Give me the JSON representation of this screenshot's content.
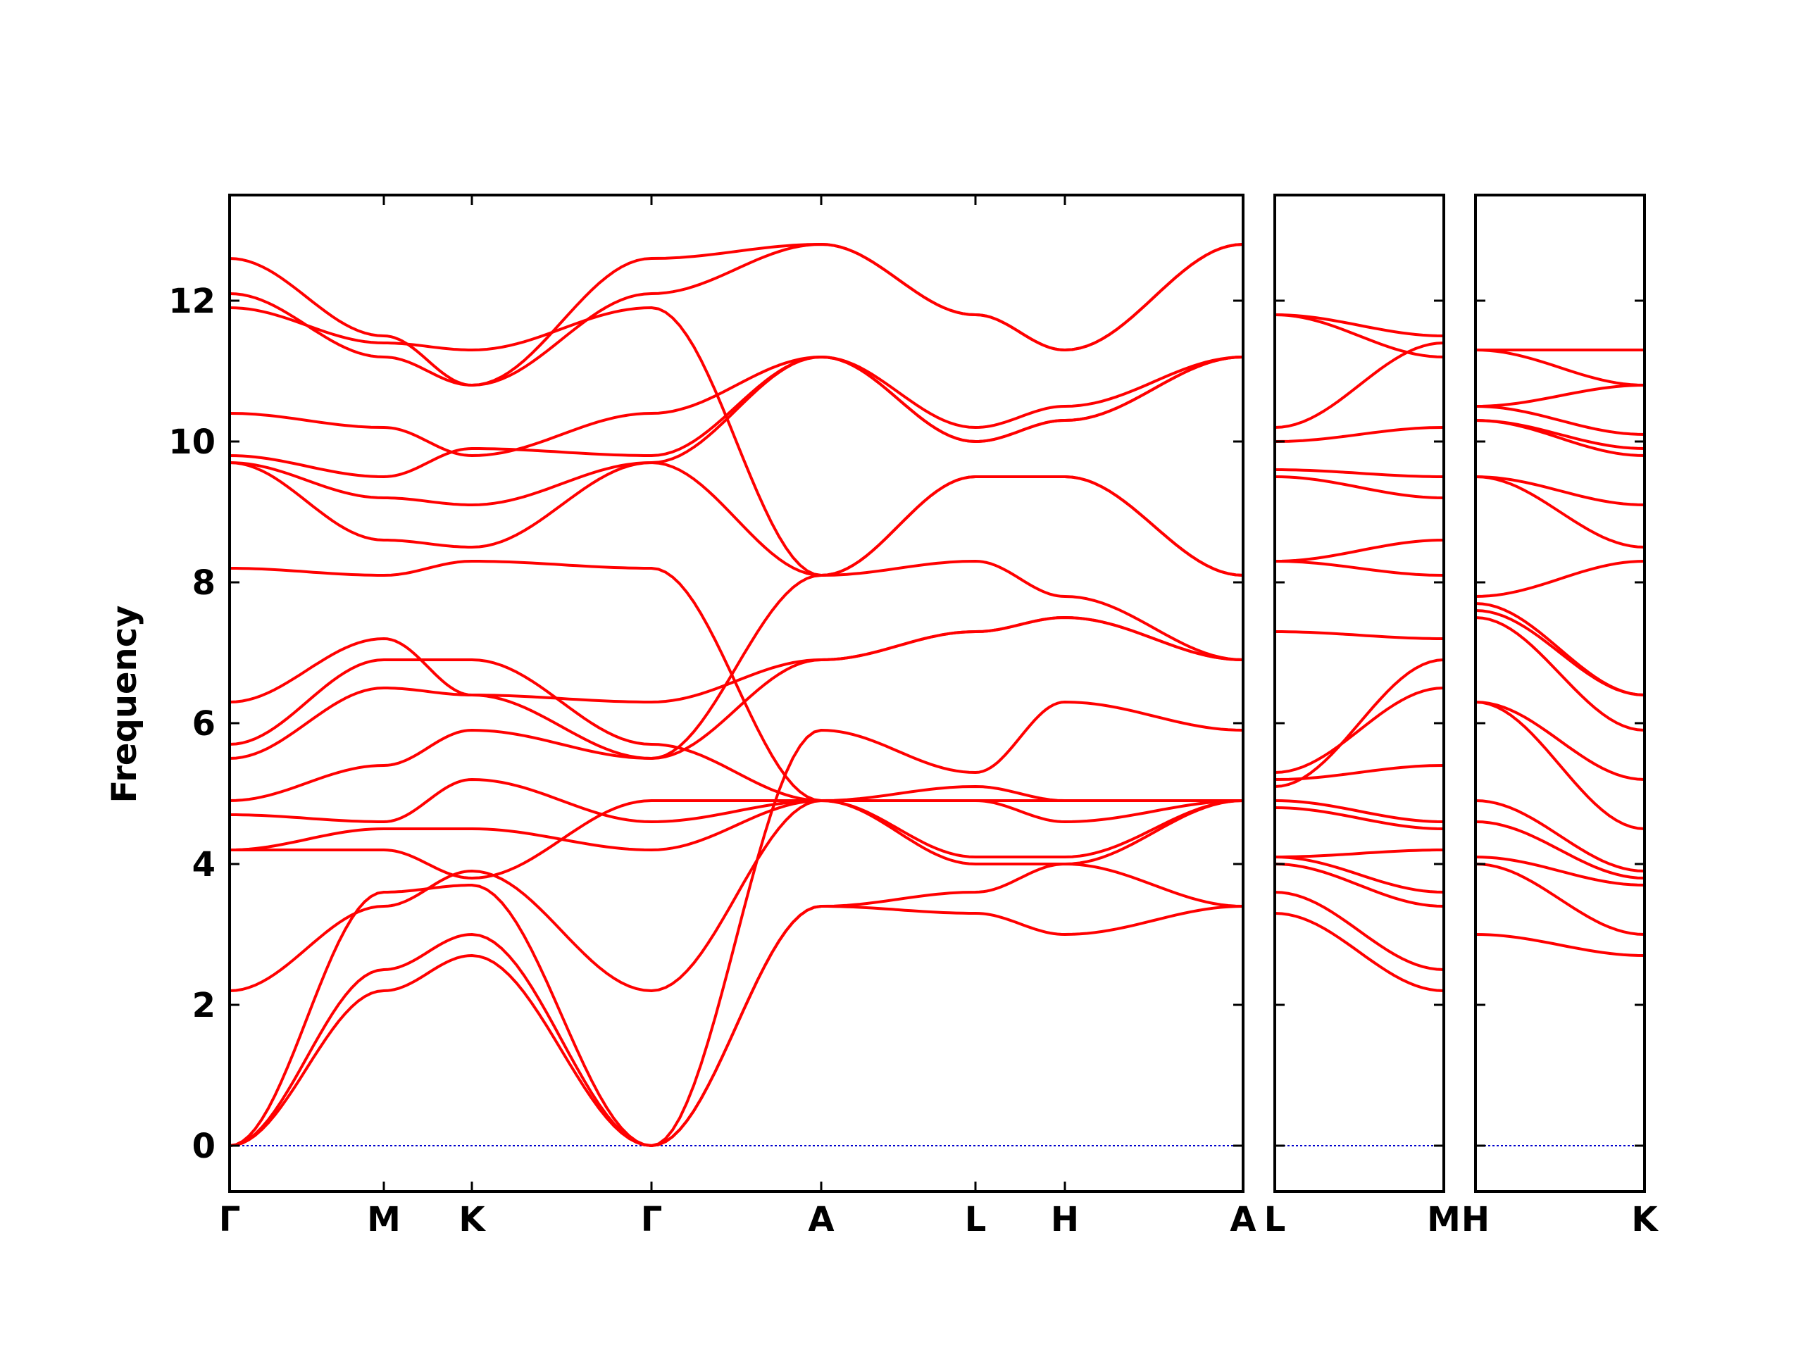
{
  "chart_data": {
    "type": "line",
    "title": "",
    "ylabel": "Frequency",
    "xlabel": "",
    "ylim": [
      -0.65,
      13.5
    ],
    "yticks": [
      0,
      2,
      4,
      6,
      8,
      10,
      12
    ],
    "grid": false,
    "line_color": "#ff0000",
    "zero_line_color": "#0000cc",
    "panels": [
      {
        "id": "main",
        "labels": [
          "Γ",
          "M",
          "K",
          "Γ",
          "A",
          "L",
          "H",
          "A"
        ],
        "bands": [
          {
            "name": "band-1",
            "y": [
              0,
              2.2,
              2.7,
              0,
              3.4,
              3.3,
              3.0,
              3.4
            ]
          },
          {
            "name": "band-2",
            "y": [
              0,
              2.5,
              3.0,
              0,
              3.4,
              3.6,
              4.0,
              3.4
            ]
          },
          {
            "name": "band-3",
            "y": [
              0,
              3.6,
              3.7,
              0,
              5.9,
              5.3,
              6.3,
              5.9
            ]
          },
          {
            "name": "band-4",
            "y": [
              2.2,
              3.4,
              3.9,
              2.2,
              4.9,
              4.1,
              4.1,
              4.9
            ]
          },
          {
            "name": "band-5",
            "y": [
              4.2,
              4.2,
              3.8,
              4.9,
              4.9,
              4.0,
              4.0,
              4.9
            ]
          },
          {
            "name": "band-6",
            "y": [
              4.2,
              4.5,
              4.5,
              4.2,
              4.9,
              4.9,
              4.9,
              4.9
            ]
          },
          {
            "name": "band-7",
            "y": [
              4.7,
              4.6,
              5.2,
              4.6,
              4.9,
              4.9,
              4.6,
              4.9
            ]
          },
          {
            "name": "band-8",
            "y": [
              4.9,
              5.4,
              5.9,
              5.5,
              6.9,
              7.3,
              7.5,
              6.9
            ]
          },
          {
            "name": "band-9",
            "y": [
              5.5,
              6.5,
              6.4,
              5.5,
              8.1,
              8.3,
              7.8,
              6.9
            ]
          },
          {
            "name": "band-10",
            "y": [
              5.7,
              6.9,
              6.9,
              5.7,
              4.9,
              5.1,
              4.9,
              4.9
            ]
          },
          {
            "name": "band-11",
            "y": [
              6.3,
              7.2,
              6.4,
              6.3,
              6.9,
              7.3,
              7.5,
              6.9
            ]
          },
          {
            "name": "band-12",
            "y": [
              8.2,
              8.1,
              8.3,
              8.2,
              4.9,
              4.9,
              4.9,
              4.9
            ]
          },
          {
            "name": "band-13",
            "y": [
              9.7,
              8.6,
              8.5,
              9.7,
              8.1,
              9.5,
              9.5,
              8.1
            ]
          },
          {
            "name": "band-14",
            "y": [
              9.7,
              9.2,
              9.1,
              9.7,
              11.2,
              10.0,
              10.3,
              11.2
            ]
          },
          {
            "name": "band-15",
            "y": [
              9.8,
              9.5,
              9.9,
              9.8,
              11.2,
              10.2,
              10.5,
              11.2
            ]
          },
          {
            "name": "band-16",
            "y": [
              10.4,
              10.2,
              9.8,
              10.4,
              11.2,
              10.0,
              10.3,
              11.2
            ]
          },
          {
            "name": "band-17",
            "y": [
              11.9,
              11.4,
              11.3,
              11.9,
              8.1,
              9.5,
              9.5,
              8.1
            ]
          },
          {
            "name": "band-18",
            "y": [
              12.1,
              11.2,
              10.8,
              12.1,
              12.8,
              11.8,
              11.3,
              12.8
            ]
          },
          {
            "name": "band-19",
            "y": [
              12.6,
              11.5,
              10.8,
              12.6,
              12.8,
              11.8,
              11.3,
              12.8
            ]
          }
        ]
      },
      {
        "id": "LM",
        "labels": [
          "L",
          "M"
        ],
        "bands": [
          {
            "name": "band-1",
            "y": [
              3.3,
              2.2
            ]
          },
          {
            "name": "band-2",
            "y": [
              3.6,
              2.5
            ]
          },
          {
            "name": "band-3",
            "y": [
              4.0,
              3.4
            ]
          },
          {
            "name": "band-4",
            "y": [
              4.1,
              3.6
            ]
          },
          {
            "name": "band-5",
            "y": [
              4.1,
              4.2
            ]
          },
          {
            "name": "band-6",
            "y": [
              4.8,
              4.5
            ]
          },
          {
            "name": "band-7",
            "y": [
              4.9,
              4.6
            ]
          },
          {
            "name": "band-8",
            "y": [
              5.2,
              5.4
            ]
          },
          {
            "name": "band-9",
            "y": [
              5.3,
              6.5
            ]
          },
          {
            "name": "band-10",
            "y": [
              5.1,
              6.9
            ]
          },
          {
            "name": "band-11",
            "y": [
              7.3,
              7.2
            ]
          },
          {
            "name": "band-12",
            "y": [
              8.3,
              8.1
            ]
          },
          {
            "name": "band-13",
            "y": [
              8.3,
              8.6
            ]
          },
          {
            "name": "band-14",
            "y": [
              9.5,
              9.2
            ]
          },
          {
            "name": "band-15",
            "y": [
              9.6,
              9.5
            ]
          },
          {
            "name": "band-16",
            "y": [
              10.0,
              10.2
            ]
          },
          {
            "name": "band-17",
            "y": [
              10.2,
              11.4
            ]
          },
          {
            "name": "band-18",
            "y": [
              11.8,
              11.2
            ]
          },
          {
            "name": "band-19",
            "y": [
              11.8,
              11.5
            ]
          }
        ]
      },
      {
        "id": "HK",
        "labels": [
          "H",
          "K"
        ],
        "bands": [
          {
            "name": "band-1",
            "y": [
              3.0,
              2.7
            ]
          },
          {
            "name": "band-2",
            "y": [
              4.0,
              3.0
            ]
          },
          {
            "name": "band-3",
            "y": [
              4.1,
              3.7
            ]
          },
          {
            "name": "band-4",
            "y": [
              4.6,
              3.8
            ]
          },
          {
            "name": "band-5",
            "y": [
              4.9,
              3.9
            ]
          },
          {
            "name": "band-6",
            "y": [
              6.3,
              4.5
            ]
          },
          {
            "name": "band-7",
            "y": [
              6.3,
              5.2
            ]
          },
          {
            "name": "band-8",
            "y": [
              7.5,
              5.9
            ]
          },
          {
            "name": "band-9",
            "y": [
              7.6,
              6.4
            ]
          },
          {
            "name": "band-10",
            "y": [
              7.7,
              6.4
            ]
          },
          {
            "name": "band-11",
            "y": [
              7.8,
              8.3
            ]
          },
          {
            "name": "band-12",
            "y": [
              9.5,
              8.5
            ]
          },
          {
            "name": "band-13",
            "y": [
              9.5,
              9.1
            ]
          },
          {
            "name": "band-14",
            "y": [
              10.3,
              9.8
            ]
          },
          {
            "name": "band-15",
            "y": [
              10.3,
              9.9
            ]
          },
          {
            "name": "band-16",
            "y": [
              10.5,
              10.1
            ]
          },
          {
            "name": "band-17",
            "y": [
              10.5,
              10.8
            ]
          },
          {
            "name": "band-18",
            "y": [
              11.3,
              10.8
            ]
          },
          {
            "name": "band-19",
            "y": [
              11.3,
              11.3
            ]
          }
        ]
      }
    ]
  }
}
